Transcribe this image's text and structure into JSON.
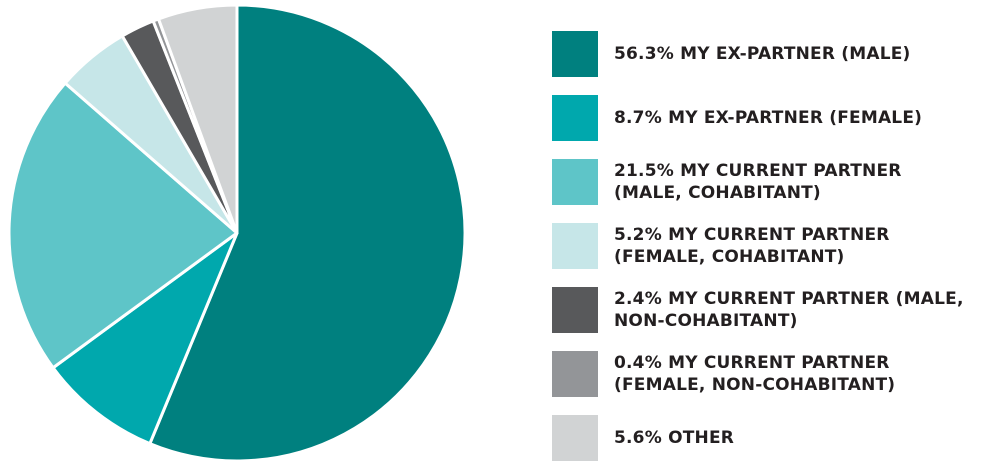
{
  "chart_data": {
    "type": "pie",
    "categories": [
      "MY EX-PARTNER (MALE)",
      "MY EX-PARTNER (FEMALE)",
      "MY CURRENT PARTNER (MALE, COHABITANT)",
      "MY CURRENT PARTNER (FEMALE, COHABITANT)",
      "MY CURRENT PARTNER (MALE, NON-COHABITANT)",
      "MY CURRENT PARTNER (FEMALE, NON-COHABITANT)",
      "OTHER"
    ],
    "values": [
      56.3,
      8.7,
      21.5,
      5.2,
      2.4,
      0.4,
      5.6
    ],
    "value_labels": [
      "56.3%",
      "8.7%",
      "21.5%",
      "5.2%",
      "2.4%",
      "0.4%",
      "5.6%"
    ],
    "colors": [
      "#00807f",
      "#00a8ad",
      "#5ec5c8",
      "#c6e6e8",
      "#58595b",
      "#939598",
      "#d1d3d4"
    ],
    "legend": "right"
  }
}
